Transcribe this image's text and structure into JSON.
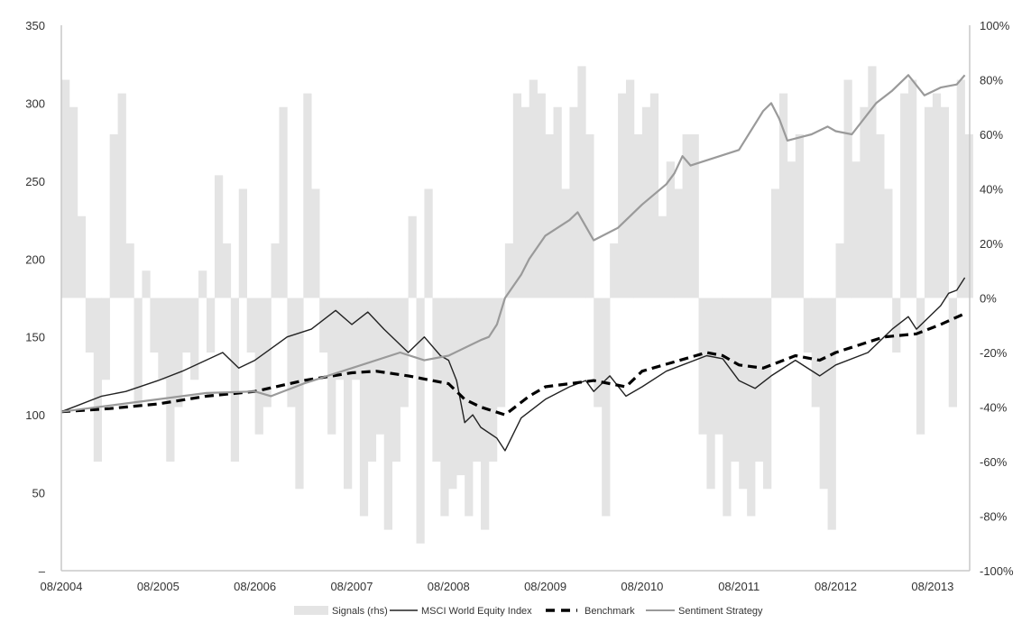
{
  "chart_data": {
    "type": "line",
    "title": "",
    "xlabel": "",
    "ylabel": "",
    "x_tick_labels": [
      "08/2004",
      "08/2005",
      "08/2006",
      "08/2007",
      "08/2008",
      "08/2009",
      "08/2010",
      "08/2011",
      "08/2012",
      "08/2013"
    ],
    "y_left": {
      "ticks": [
        0,
        50,
        100,
        150,
        200,
        250,
        300,
        350
      ],
      "tick_labels": [
        "–",
        "50",
        "100",
        "150",
        "200",
        "250",
        "300",
        "350"
      ],
      "range": [
        0,
        350
      ]
    },
    "y_right": {
      "ticks": [
        -100,
        -80,
        -60,
        -40,
        -20,
        0,
        20,
        40,
        60,
        80,
        100
      ],
      "tick_labels": [
        "-100%",
        "-80%",
        "-60%",
        "-40%",
        "-20%",
        "0%",
        "20%",
        "40%",
        "60%",
        "80%",
        "100%"
      ],
      "range": [
        -100,
        100
      ]
    },
    "x_range": [
      "2004-08",
      "2013-12"
    ],
    "grid": false,
    "legend_position": "bottom",
    "legend": [
      "Signals (rhs)",
      "MSCI World Equity Index",
      "Benchmark",
      "Sentiment Strategy"
    ],
    "signals": {
      "name": "Signals (rhs)",
      "start": "2004-08",
      "frequency": "monthly",
      "unit": "%",
      "values": [
        80,
        70,
        30,
        -20,
        -60,
        -30,
        60,
        75,
        20,
        -40,
        10,
        -20,
        -30,
        -60,
        -40,
        -20,
        -30,
        10,
        -20,
        45,
        20,
        -60,
        40,
        -20,
        -50,
        -40,
        20,
        70,
        -40,
        -70,
        75,
        40,
        -20,
        -50,
        -30,
        -70,
        -30,
        -80,
        -60,
        -50,
        -85,
        -60,
        -40,
        30,
        -90,
        40,
        -60,
        -80,
        -70,
        -65,
        -80,
        -60,
        -85,
        -60,
        -40,
        20,
        75,
        70,
        80,
        75,
        60,
        70,
        40,
        70,
        85,
        60,
        -40,
        -80,
        20,
        75,
        80,
        60,
        70,
        75,
        30,
        50,
        40,
        60,
        60,
        -50,
        -70,
        -50,
        -80,
        -60,
        -70,
        -80,
        -60,
        -70,
        40,
        75,
        50,
        60,
        -20,
        -40,
        -70,
        -85,
        20,
        80,
        50,
        70,
        85,
        60,
        40,
        -20,
        75,
        80,
        -50,
        70,
        75,
        70,
        -40,
        80,
        60
      ]
    },
    "series": [
      {
        "name": "MSCI World Equity Index",
        "points": [
          [
            "2004-08",
            102
          ],
          [
            "2004-10",
            106
          ],
          [
            "2005-01",
            112
          ],
          [
            "2005-04",
            115
          ],
          [
            "2005-08",
            122
          ],
          [
            "2005-11",
            128
          ],
          [
            "2006-04",
            140
          ],
          [
            "2006-06",
            130
          ],
          [
            "2006-08",
            135
          ],
          [
            "2006-12",
            150
          ],
          [
            "2007-03",
            155
          ],
          [
            "2007-06",
            167
          ],
          [
            "2007-08",
            158
          ],
          [
            "2007-10",
            166
          ],
          [
            "2007-12",
            155
          ],
          [
            "2008-03",
            140
          ],
          [
            "2008-05",
            150
          ],
          [
            "2008-07",
            138
          ],
          [
            "2008-08",
            135
          ],
          [
            "2008-09",
            122
          ],
          [
            "2008-10",
            95
          ],
          [
            "2008-11",
            100
          ],
          [
            "2008-12",
            92
          ],
          [
            "2009-02",
            85
          ],
          [
            "2009-03",
            77
          ],
          [
            "2009-05",
            98
          ],
          [
            "2009-08",
            110
          ],
          [
            "2009-11",
            118
          ],
          [
            "2010-01",
            122
          ],
          [
            "2010-02",
            115
          ],
          [
            "2010-04",
            125
          ],
          [
            "2010-06",
            112
          ],
          [
            "2010-08",
            118
          ],
          [
            "2010-11",
            128
          ],
          [
            "2011-01",
            132
          ],
          [
            "2011-04",
            138
          ],
          [
            "2011-06",
            136
          ],
          [
            "2011-08",
            122
          ],
          [
            "2011-10",
            117
          ],
          [
            "2011-12",
            125
          ],
          [
            "2012-03",
            135
          ],
          [
            "2012-06",
            125
          ],
          [
            "2012-08",
            132
          ],
          [
            "2012-12",
            140
          ],
          [
            "2013-03",
            155
          ],
          [
            "2013-05",
            163
          ],
          [
            "2013-06",
            155
          ],
          [
            "2013-09",
            170
          ],
          [
            "2013-10",
            178
          ],
          [
            "2013-11",
            180
          ],
          [
            "2013-12",
            188
          ]
        ]
      },
      {
        "name": "Benchmark",
        "points": [
          [
            "2004-08",
            102
          ],
          [
            "2005-02",
            104
          ],
          [
            "2005-08",
            107
          ],
          [
            "2006-02",
            112
          ],
          [
            "2006-08",
            115
          ],
          [
            "2007-02",
            122
          ],
          [
            "2007-08",
            127
          ],
          [
            "2007-11",
            128
          ],
          [
            "2008-03",
            125
          ],
          [
            "2008-08",
            120
          ],
          [
            "2008-10",
            110
          ],
          [
            "2008-12",
            105
          ],
          [
            "2009-03",
            100
          ],
          [
            "2009-06",
            112
          ],
          [
            "2009-08",
            118
          ],
          [
            "2010-02",
            122
          ],
          [
            "2010-06",
            118
          ],
          [
            "2010-08",
            128
          ],
          [
            "2011-04",
            140
          ],
          [
            "2011-06",
            138
          ],
          [
            "2011-08",
            132
          ],
          [
            "2011-11",
            130
          ],
          [
            "2012-03",
            138
          ],
          [
            "2012-06",
            135
          ],
          [
            "2012-08",
            140
          ],
          [
            "2013-02",
            150
          ],
          [
            "2013-06",
            152
          ],
          [
            "2013-09",
            158
          ],
          [
            "2013-12",
            165
          ]
        ]
      },
      {
        "name": "Sentiment Strategy",
        "points": [
          [
            "2004-08",
            102
          ],
          [
            "2005-02",
            106
          ],
          [
            "2005-08",
            110
          ],
          [
            "2006-02",
            114
          ],
          [
            "2006-08",
            115
          ],
          [
            "2006-10",
            112
          ],
          [
            "2007-02",
            120
          ],
          [
            "2007-08",
            130
          ],
          [
            "2008-02",
            140
          ],
          [
            "2008-05",
            135
          ],
          [
            "2008-08",
            138
          ],
          [
            "2008-12",
            148
          ],
          [
            "2009-01",
            150
          ],
          [
            "2009-02",
            158
          ],
          [
            "2009-03",
            175
          ],
          [
            "2009-05",
            190
          ],
          [
            "2009-06",
            200
          ],
          [
            "2009-08",
            215
          ],
          [
            "2009-11",
            225
          ],
          [
            "2009-12",
            230
          ],
          [
            "2010-02",
            212
          ],
          [
            "2010-05",
            220
          ],
          [
            "2010-08",
            235
          ],
          [
            "2010-11",
            248
          ],
          [
            "2010-12",
            255
          ],
          [
            "2011-01",
            266
          ],
          [
            "2011-02",
            260
          ],
          [
            "2011-05",
            265
          ],
          [
            "2011-08",
            270
          ],
          [
            "2011-11",
            295
          ],
          [
            "2011-12",
            300
          ],
          [
            "2012-01",
            290
          ],
          [
            "2012-02",
            276
          ],
          [
            "2012-05",
            280
          ],
          [
            "2012-07",
            285
          ],
          [
            "2012-08",
            282
          ],
          [
            "2012-10",
            280
          ],
          [
            "2013-01",
            300
          ],
          [
            "2013-03",
            308
          ],
          [
            "2013-05",
            318
          ],
          [
            "2013-07",
            305
          ],
          [
            "2013-09",
            310
          ],
          [
            "2013-11",
            312
          ],
          [
            "2013-12",
            318
          ]
        ]
      }
    ],
    "colors": {
      "signals": "#e4e4e4",
      "msci": "#222222",
      "benchmark": "#000000",
      "sentiment": "#9a9a9a",
      "axis": "#c8c8c8"
    }
  }
}
